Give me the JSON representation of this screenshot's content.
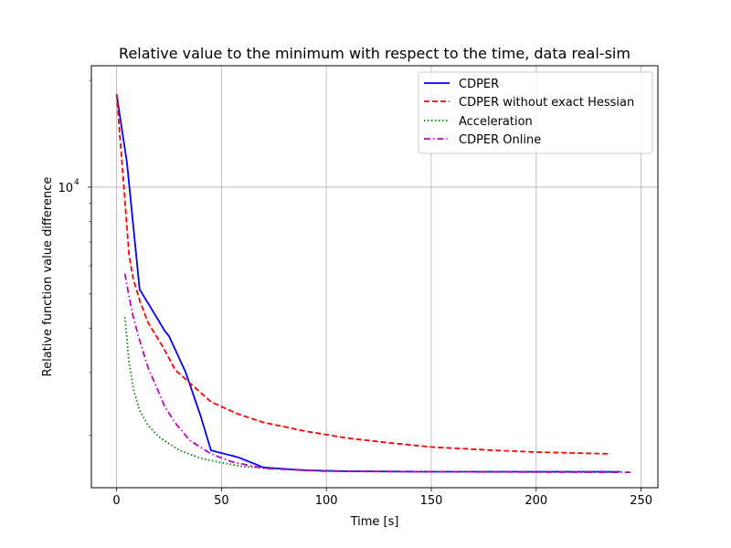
{
  "chart_data": {
    "type": "line",
    "title": "Relative value to the minimum with respect to the time, data real-sim",
    "xlabel": "Time [s]",
    "ylabel": "Relative function value difference",
    "xlim": [
      -12,
      258
    ],
    "ylim": [
      1420,
      22000
    ],
    "yscale": "log",
    "grid": true,
    "legend_position": "top-right",
    "x_ticks": [
      0,
      50,
      100,
      150,
      200,
      250
    ],
    "x_tick_labels": [
      "0",
      "50",
      "100",
      "150",
      "200",
      "250"
    ],
    "y_major_ticks": [
      10000
    ],
    "y_tick_label_base": "10",
    "y_tick_label_exp": "4",
    "y_minor_ticks": [
      2000,
      3000,
      4000,
      5000,
      6000,
      7000,
      8000,
      9000,
      20000
    ],
    "series": [
      {
        "name": "CDPER",
        "color": "#0000ff",
        "dash": "solid",
        "x": [
          0,
          5,
          11,
          17,
          23,
          25,
          33,
          40,
          45,
          58,
          70,
          90,
          110,
          150,
          200,
          240
        ],
        "y": [
          18300,
          11700,
          5150,
          4500,
          3930,
          3800,
          3000,
          2270,
          1810,
          1730,
          1620,
          1590,
          1580,
          1575,
          1575,
          1575
        ]
      },
      {
        "name": "CDPER without exact Hessian",
        "color": "#ff0000",
        "dash": "dashed",
        "x": [
          0,
          3,
          6,
          8,
          11,
          15,
          22,
          28,
          35,
          45,
          58,
          70,
          90,
          110,
          130,
          150,
          180,
          200,
          235
        ],
        "y": [
          18300,
          11000,
          6400,
          5500,
          4800,
          4150,
          3550,
          3050,
          2800,
          2480,
          2290,
          2170,
          2050,
          1960,
          1900,
          1850,
          1810,
          1790,
          1770
        ]
      },
      {
        "name": "Acceleration",
        "color": "#008000",
        "dash": "dotted",
        "x": [
          4,
          6,
          8,
          11,
          15,
          20,
          25,
          30,
          40,
          50,
          60,
          80,
          100,
          150,
          200,
          240
        ],
        "y": [
          4300,
          3200,
          2700,
          2350,
          2130,
          1980,
          1890,
          1810,
          1720,
          1670,
          1630,
          1600,
          1585,
          1575,
          1573,
          1572
        ]
      },
      {
        "name": "CDPER Online",
        "color": "#bf00bf",
        "dash": "dashdot",
        "x": [
          4,
          6,
          8,
          11,
          15,
          20,
          23,
          28,
          35,
          45,
          55,
          70,
          100,
          150,
          200,
          245
        ],
        "y": [
          5700,
          4900,
          4300,
          3700,
          3100,
          2650,
          2400,
          2160,
          1930,
          1770,
          1680,
          1610,
          1580,
          1575,
          1572,
          1570
        ]
      }
    ]
  }
}
